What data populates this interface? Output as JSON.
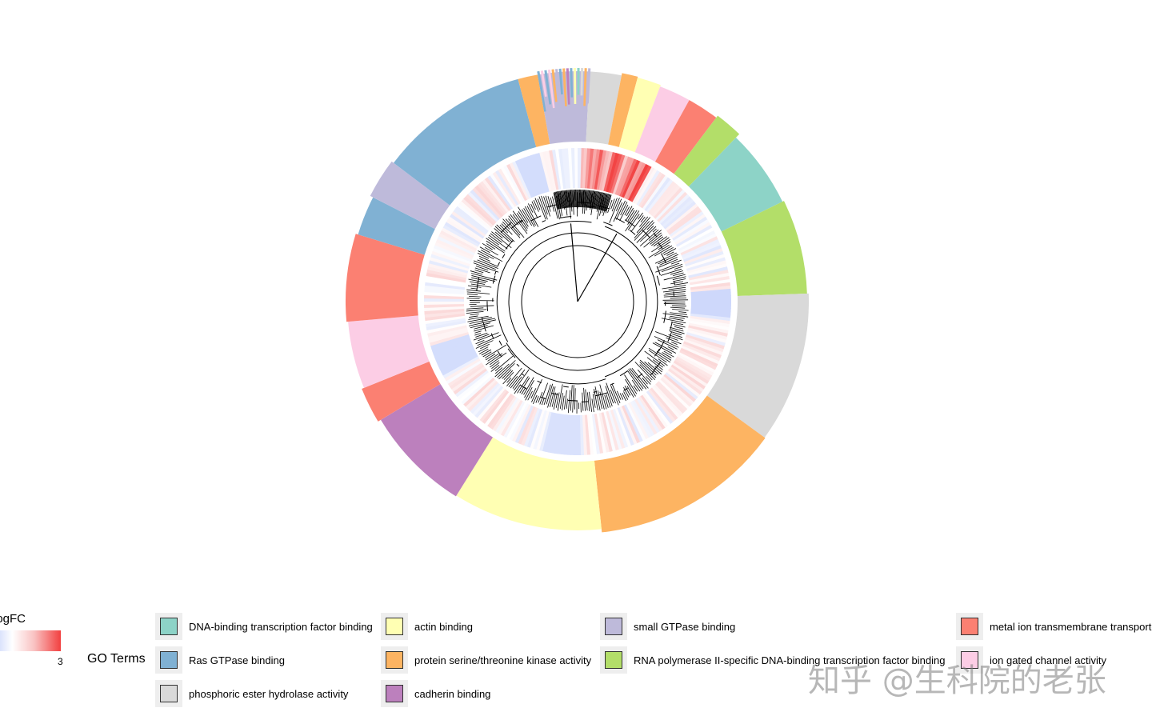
{
  "chart_data": {
    "type": "circular-dendrogram-heatmap",
    "title": "",
    "inner_ring": {
      "name": "logFC",
      "legend_title": "logFC",
      "legend_max_label": "3",
      "color_low": "#c8d4fb",
      "color_mid": "#ffffff",
      "color_high": "#f23f3f",
      "range": [
        -1,
        3
      ]
    },
    "outer_ring": {
      "name": "GO Terms",
      "legend_title": "GO Terms",
      "segments": [
        {
          "term": "small GTPase binding",
          "start_deg": 350,
          "span_deg": 13
        },
        {
          "term": "phosphoric ester hydrolase activity",
          "start_deg": 3,
          "span_deg": 8
        },
        {
          "term": "protein serine/threonine kinase activity",
          "start_deg": 11,
          "span_deg": 4
        },
        {
          "term": "actin binding",
          "start_deg": 15,
          "span_deg": 6
        },
        {
          "term": "ion gated channel activity",
          "start_deg": 21,
          "span_deg": 8
        },
        {
          "term": "metal ion transmembrane transporter activity",
          "start_deg": 29,
          "span_deg": 8
        },
        {
          "term": "RNA polymerase II-specific DNA-binding transcription factor binding",
          "start_deg": 37,
          "span_deg": 7
        },
        {
          "term": "DNA-binding transcription factor binding",
          "start_deg": 44,
          "span_deg": 20
        },
        {
          "term": "RNA polymerase II-specific DNA-binding transcription factor binding",
          "start_deg": 64,
          "span_deg": 24
        },
        {
          "term": "phosphoric ester hydrolase activity",
          "start_deg": 88,
          "span_deg": 38
        },
        {
          "term": "protein serine/threonine kinase activity",
          "start_deg": 126,
          "span_deg": 48
        },
        {
          "term": "actin binding",
          "start_deg": 174,
          "span_deg": 38
        },
        {
          "term": "cadherin binding",
          "start_deg": 212,
          "span_deg": 27
        },
        {
          "term": "metal ion transmembrane transporter activity",
          "start_deg": 239,
          "span_deg": 9
        },
        {
          "term": "ion gated channel activity",
          "start_deg": 248,
          "span_deg": 17
        },
        {
          "term": "metal ion transmembrane transporter activity",
          "start_deg": 265,
          "span_deg": 22
        },
        {
          "term": "Ras GTPase binding",
          "start_deg": 287,
          "span_deg": 10
        },
        {
          "term": "small GTPase binding",
          "start_deg": 297,
          "span_deg": 10
        },
        {
          "term": "Ras GTPase binding",
          "start_deg": 307,
          "span_deg": 38
        },
        {
          "term": "protein serine/threonine kinase activity",
          "start_deg": 345,
          "span_deg": 5
        }
      ],
      "legend_items": [
        {
          "label": "DNA-binding transcription factor binding",
          "color": "#8dd3c7"
        },
        {
          "label": "Ras GTPase binding",
          "color": "#80b1d3"
        },
        {
          "label": "phosphoric ester hydrolase activity",
          "color": "#d9d9d9"
        },
        {
          "label": "actin binding",
          "color": "#ffffb3"
        },
        {
          "label": "protein serine/threonine kinase activity",
          "color": "#fdb462"
        },
        {
          "label": "cadherin binding",
          "color": "#bc80bd"
        },
        {
          "label": "small GTPase binding",
          "color": "#bebada"
        },
        {
          "label": "RNA polymerase II-specific DNA-binding transcription factor binding",
          "color": "#b3de69"
        },
        {
          "label": "metal ion transmembrane transporter activity",
          "color": "#fb8072"
        },
        {
          "label": "ion gated channel activity",
          "color": "#fccde5"
        }
      ]
    }
  },
  "watermark": "知乎 @生科院的老张"
}
